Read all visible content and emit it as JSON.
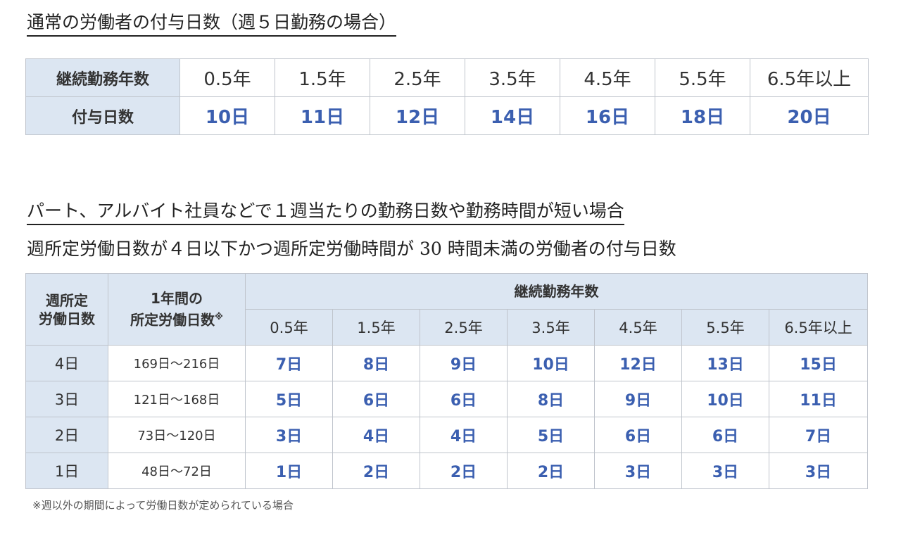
{
  "section1": {
    "title": "通常の労働者の付与日数（週５日勤務の場合）",
    "row_labels": [
      "継続勤務年数",
      "付与日数"
    ],
    "years": [
      "0.5年",
      "1.5年",
      "2.5年",
      "3.5年",
      "4.5年",
      "5.5年",
      "6.5年以上"
    ],
    "days": [
      "10日",
      "11日",
      "12日",
      "14日",
      "16日",
      "18日",
      "20日"
    ]
  },
  "section2": {
    "title": "パート、アルバイト社員などで１週当たりの勤務日数や勤務時間が短い場合",
    "subtitle": "週所定労働日数が４日以下かつ週所定労働時間が 30 時間未満の労働者の付与日数",
    "header": {
      "col1_line1": "週所定",
      "col1_line2": "労働日数",
      "col2_line1": "1年間の",
      "col2_line2": "所定労働日数",
      "col2_mark": "※",
      "group": "継続勤務年数",
      "years": [
        "0.5年",
        "1.5年",
        "2.5年",
        "3.5年",
        "4.5年",
        "5.5年",
        "6.5年以上"
      ]
    },
    "rows": [
      {
        "weekly_days": "4日",
        "annual_range": "169日～216日",
        "values": [
          "7日",
          "8日",
          "9日",
          "10日",
          "12日",
          "13日",
          "15日"
        ]
      },
      {
        "weekly_days": "3日",
        "annual_range": "121日～168日",
        "values": [
          "5日",
          "6日",
          "6日",
          "8日",
          "9日",
          "10日",
          "11日"
        ]
      },
      {
        "weekly_days": "2日",
        "annual_range": "73日～120日",
        "values": [
          "3日",
          "4日",
          "4日",
          "5日",
          "6日",
          "6日",
          "7日"
        ]
      },
      {
        "weekly_days": "1日",
        "annual_range": "48日～72日",
        "values": [
          "1日",
          "2日",
          "2日",
          "2日",
          "3日",
          "3日",
          "3日"
        ]
      }
    ],
    "note": "※週以外の期間によって労働日数が定められている場合"
  },
  "colors": {
    "header_bg": "#dce6f2",
    "value_blue": "#3b5fb0",
    "border": "#bfc4cc"
  }
}
